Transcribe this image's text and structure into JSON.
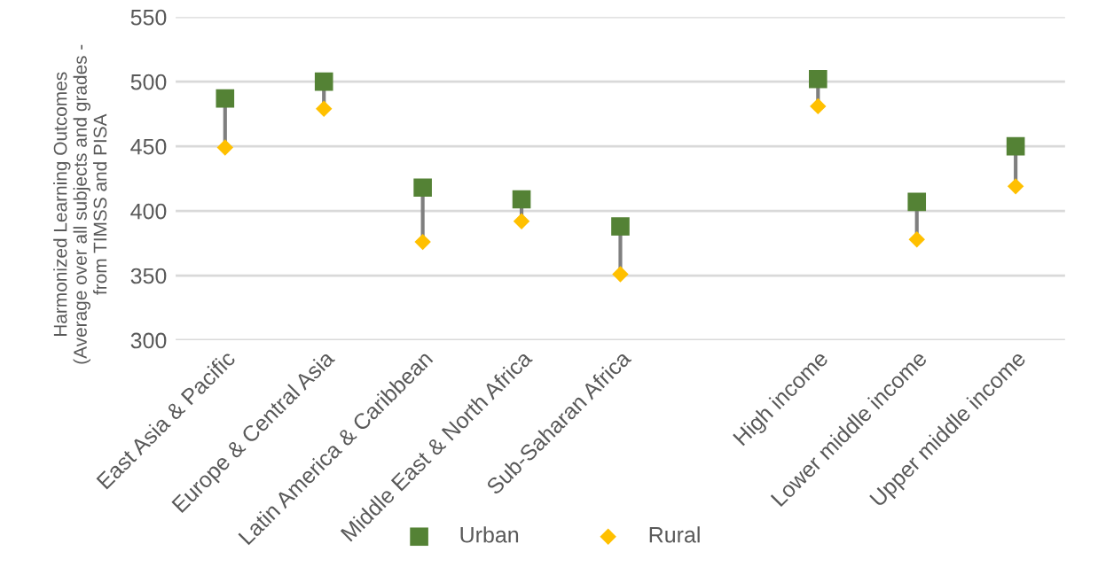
{
  "chart_data": {
    "type": "scatter",
    "ylabel": "Harmonized Learning Outcomes\n(Average over all subjects and grades -\nfrom TIMSS and PISA",
    "categories": [
      "East Asia & Pacific",
      "Europe & Central Asia",
      "Latin America & Caribbean",
      "Middle East & North Africa",
      "Sub-Saharan Africa",
      null,
      "High income",
      "Lower middle income",
      "Upper middle income"
    ],
    "series": [
      {
        "name": "Urban",
        "color": "#548235",
        "marker": "square",
        "values": [
          487,
          500,
          418,
          409,
          388,
          null,
          502,
          407,
          450
        ]
      },
      {
        "name": "Rural",
        "color": "#ffc000",
        "marker": "diamond",
        "values": [
          449,
          479,
          376,
          392,
          351,
          null,
          481,
          378,
          419
        ]
      }
    ],
    "ylim": [
      300,
      550
    ],
    "yticks": [
      300,
      350,
      400,
      450,
      500,
      550
    ],
    "grid": "y",
    "legend": "bottom"
  }
}
